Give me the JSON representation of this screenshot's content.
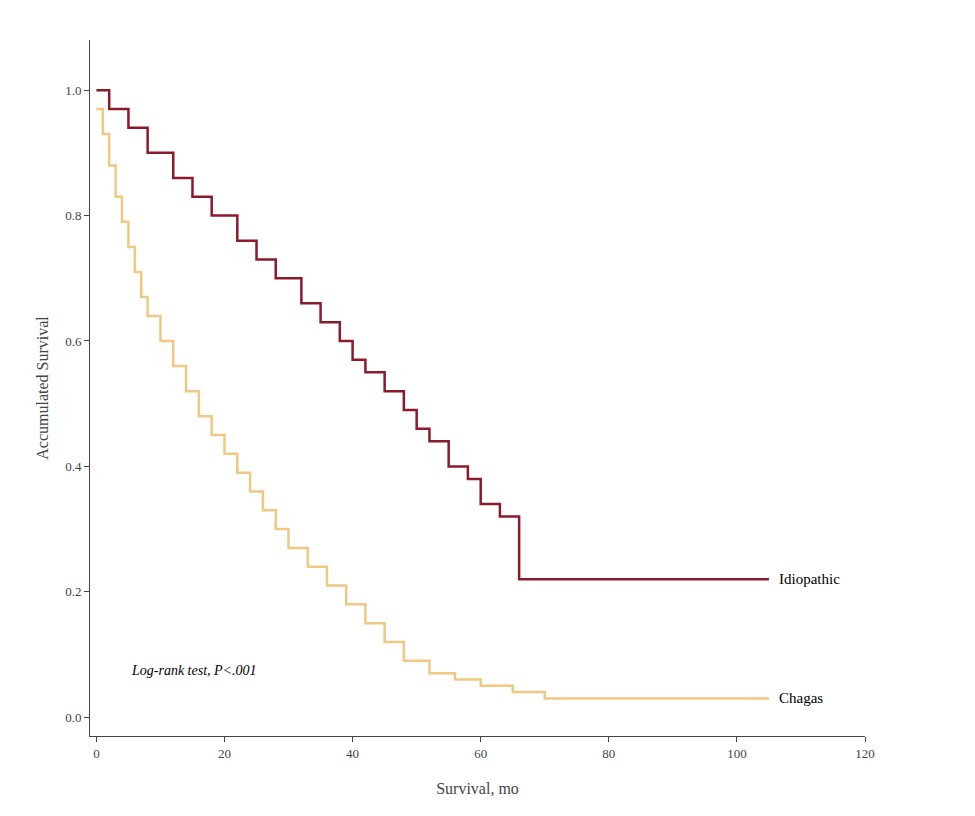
{
  "chart_data": {
    "type": "step",
    "xlabel": "Survival, mo",
    "ylabel": "Accumulated Survival",
    "annotation": "Log-rank test, P<.001",
    "series": [
      {
        "name": "Idiopathic",
        "color": "#8B1A2A",
        "x": [
          0,
          2,
          5,
          8,
          12,
          15,
          18,
          22,
          25,
          28,
          32,
          35,
          38,
          40,
          42,
          45,
          48,
          50,
          52,
          55,
          58,
          60,
          63,
          66,
          70,
          76,
          105
        ],
        "values": [
          1.0,
          0.97,
          0.94,
          0.9,
          0.86,
          0.83,
          0.8,
          0.76,
          0.73,
          0.7,
          0.66,
          0.63,
          0.6,
          0.57,
          0.55,
          0.52,
          0.49,
          0.46,
          0.44,
          0.4,
          0.38,
          0.34,
          0.32,
          0.22,
          0.22,
          0.22,
          0.22
        ]
      },
      {
        "name": "Chagas",
        "color": "#F0C882",
        "x": [
          0,
          1,
          2,
          3,
          4,
          5,
          6,
          7,
          8,
          10,
          12,
          14,
          16,
          18,
          20,
          22,
          24,
          26,
          28,
          30,
          33,
          36,
          39,
          42,
          45,
          48,
          52,
          56,
          60,
          65,
          70,
          75,
          80,
          85,
          90,
          95,
          105
        ],
        "values": [
          0.97,
          0.93,
          0.88,
          0.83,
          0.79,
          0.75,
          0.71,
          0.67,
          0.64,
          0.6,
          0.56,
          0.52,
          0.48,
          0.45,
          0.42,
          0.39,
          0.36,
          0.33,
          0.3,
          0.27,
          0.24,
          0.21,
          0.18,
          0.15,
          0.12,
          0.09,
          0.07,
          0.06,
          0.05,
          0.04,
          0.03,
          0.03,
          0.03,
          0.03,
          0.03,
          0.03,
          0.03
        ]
      }
    ],
    "xlim": [
      -1,
      120
    ],
    "ylim": [
      -0.03,
      1.08
    ],
    "xticks": [
      0,
      20,
      40,
      60,
      80,
      100,
      120
    ],
    "yticks": [
      {
        "value": 0,
        "label": "0.0"
      },
      0.2,
      0.4,
      0.6,
      0.8,
      {
        "value": 1,
        "label": "1.0"
      }
    ],
    "grid": false
  }
}
